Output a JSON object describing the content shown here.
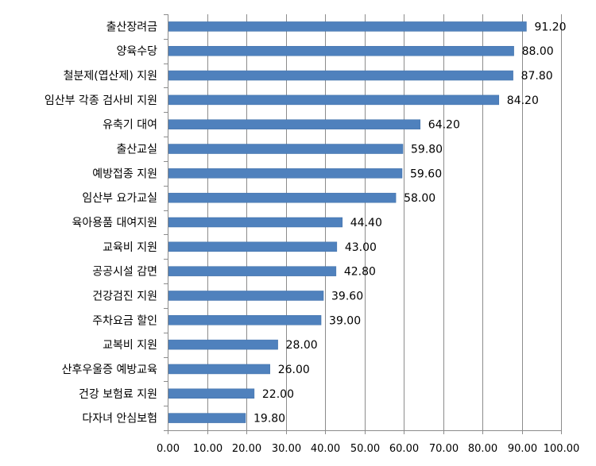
{
  "chart_data": {
    "type": "bar",
    "orientation": "horizontal",
    "categories": [
      "출산장려금",
      "양육수당",
      "철분제(엽산제) 지원",
      "임산부 각종 검사비 지원",
      "유축기 대여",
      "출산교실",
      "예방접종 지원",
      "임산부 요가교실",
      "육아용품 대여지원",
      "교육비 지원",
      "공공시설 감면",
      "건강검진 지원",
      "주차요금 할인",
      "교복비 지원",
      "산후우울증 예방교육",
      "건강 보험료 지원",
      "다자녀 안심보험"
    ],
    "values": [
      91.2,
      88.0,
      87.8,
      84.2,
      64.2,
      59.8,
      59.6,
      58.0,
      44.4,
      43.0,
      42.8,
      39.6,
      39.0,
      28.0,
      26.0,
      22.0,
      19.8
    ],
    "value_labels": [
      "91.20",
      "88.00",
      "87.80",
      "84.20",
      "64.20",
      "59.80",
      "59.60",
      "58.00",
      "44.40",
      "43.00",
      "42.80",
      "39.60",
      "39.00",
      "28.00",
      "26.00",
      "22.00",
      "19.80"
    ],
    "xlim": [
      0,
      100
    ],
    "x_ticks": [
      "0.00",
      "10.00",
      "20.00",
      "30.00",
      "40.00",
      "50.00",
      "60.00",
      "70.00",
      "80.00",
      "90.00",
      "100.00"
    ],
    "grid": "vertical",
    "title": "",
    "xlabel": "",
    "ylabel": "",
    "colors": {
      "bar": "#4f81bd",
      "bar_stroke": "#3f6fa8",
      "grid": "#8c8c8c",
      "axis": "#8c8c8c"
    }
  }
}
